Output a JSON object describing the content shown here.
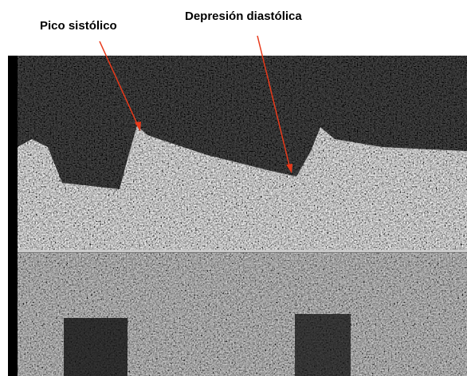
{
  "annotations": {
    "labels": [
      "Pico sistólico",
      "Depresión diastólica"
    ]
  }
}
